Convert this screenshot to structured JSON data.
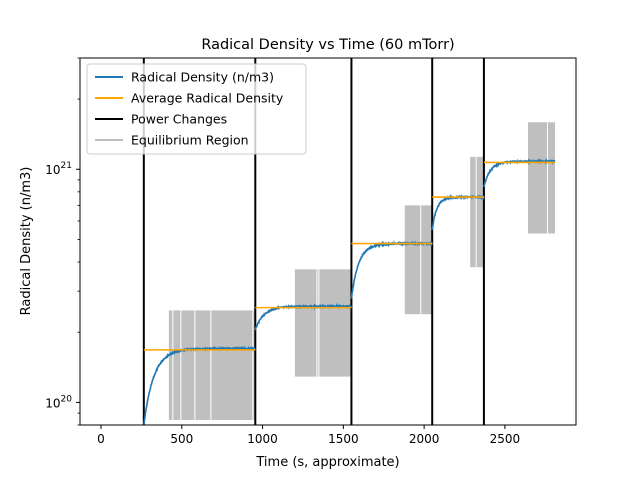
{
  "chart_data": {
    "type": "line",
    "title": "Radical Density vs Time (60 mTorr)",
    "xlabel": "Time (s, approximate)",
    "ylabel": "Radical Density (n/m3)",
    "xlim": [
      -130,
      2940
    ],
    "ylim": [
      8e+19,
      3e+21
    ],
    "yscale": "log",
    "grid": false,
    "legend_position": "top-left",
    "xticks": [
      {
        "value": 0,
        "label": "0"
      },
      {
        "value": 500,
        "label": "500"
      },
      {
        "value": 1000,
        "label": "1000"
      },
      {
        "value": 1500,
        "label": "1500"
      },
      {
        "value": 2000,
        "label": "2000"
      },
      {
        "value": 2500,
        "label": "2500"
      }
    ],
    "yticks": [
      {
        "value": 1e+20,
        "base": "10",
        "exp": "20"
      },
      {
        "value": 1e+21,
        "base": "10",
        "exp": "21"
      }
    ],
    "legend": [
      {
        "label": "Radical Density (n/m3)",
        "color": "#1f77b4"
      },
      {
        "label": "Average Radical Density",
        "color": "#ffa500"
      },
      {
        "label": "Power Changes",
        "color": "#000000"
      },
      {
        "label": "Equilibrium Region",
        "color": "#bfbfbf"
      }
    ],
    "power_changes": [
      265,
      955,
      1550,
      2050,
      2370
    ],
    "segments": [
      {
        "start": 265,
        "end": 955,
        "start_value": 8e+19,
        "plateau": 1.7e+20
      },
      {
        "start": 955,
        "end": 1550,
        "start_value": 2.05e+20,
        "plateau": 2.58e+20
      },
      {
        "start": 1550,
        "end": 2050,
        "start_value": 2.8e+20,
        "plateau": 4.8e+20
      },
      {
        "start": 2050,
        "end": 2370,
        "start_value": 5.5e+20,
        "plateau": 7.6e+20
      },
      {
        "start": 2370,
        "end": 2810,
        "start_value": 8.4e+20,
        "plateau": 1.08e+21
      }
    ],
    "average_radical_density": [
      {
        "x_start": 265,
        "x_end": 955,
        "value": 1.68e+20
      },
      {
        "x_start": 955,
        "x_end": 1550,
        "value": 2.55e+20
      },
      {
        "x_start": 1550,
        "x_end": 2050,
        "value": 4.8e+20
      },
      {
        "x_start": 2050,
        "x_end": 2370,
        "value": 7.6e+20
      },
      {
        "x_start": 2370,
        "x_end": 2810,
        "value": 1.07e+21
      }
    ],
    "equilibrium_regions": [
      {
        "x_start": 420,
        "x_end": 955,
        "y_low": 8.4e+19,
        "y_high": 2.48e+20
      },
      {
        "x_start": 1200,
        "x_end": 1550,
        "y_low": 1.29e+20,
        "y_high": 3.72e+20
      },
      {
        "x_start": 1880,
        "x_end": 2050,
        "y_low": 2.39e+20,
        "y_high": 7e+20
      },
      {
        "x_start": 2285,
        "x_end": 2365,
        "y_low": 3.8e+20,
        "y_high": 1.13e+21
      },
      {
        "x_start": 2640,
        "x_end": 2810,
        "y_low": 5.3e+20,
        "y_high": 1.59e+21
      }
    ]
  }
}
